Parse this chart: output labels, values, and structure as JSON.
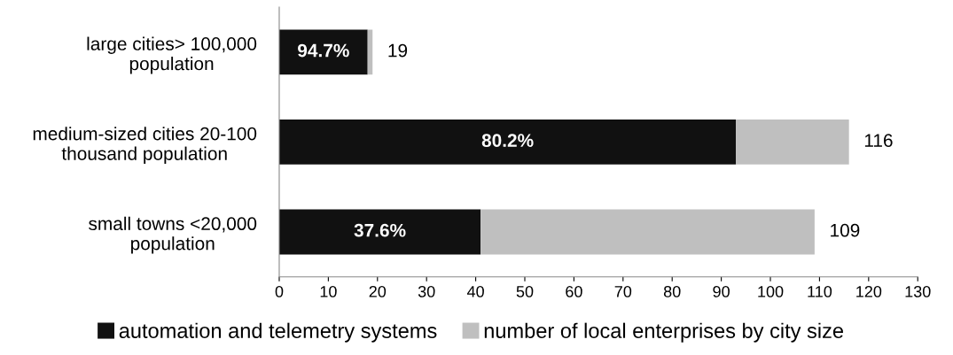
{
  "chart_data": {
    "type": "bar",
    "orientation": "horizontal",
    "stacked": true,
    "categories": [
      "large cities> 100,000\npopulation",
      "medium-sized cities 20-100\nthousand population",
      "small towns <20,000\npopulation"
    ],
    "series": [
      {
        "name": "automation and telemetry systems",
        "color": "#111111",
        "values": [
          18,
          93,
          41
        ]
      },
      {
        "name": "number of local enterprises by city size",
        "color": "#bfbfbf",
        "values": [
          1,
          23,
          68
        ]
      }
    ],
    "totals": [
      "19",
      "116",
      "109"
    ],
    "annotations": [
      "94.7%",
      "80.2%",
      "37.6%"
    ],
    "xlim": [
      0,
      130
    ],
    "xticks": [
      0,
      10,
      20,
      30,
      40,
      50,
      60,
      70,
      80,
      90,
      100,
      110,
      120,
      130
    ],
    "grid": false,
    "legend": "bottom"
  }
}
